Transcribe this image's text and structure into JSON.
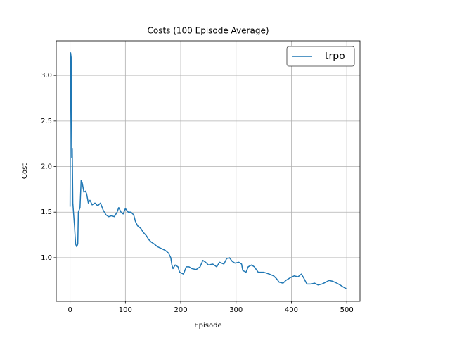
{
  "chart_data": {
    "type": "line",
    "title": "Costs (100 Episode Average)",
    "x_label": "Episode",
    "y_label": "Cost",
    "xlim": [
      -24.95,
      523.95
    ],
    "ylim": [
      0.52,
      3.38
    ],
    "xticks": [
      0,
      100,
      200,
      300,
      400,
      500
    ],
    "yticks": [
      {
        "value": 1,
        "label": "1.0"
      },
      {
        "value": 1.5,
        "label": "1.5"
      },
      {
        "value": 2,
        "label": "2.0"
      },
      {
        "value": 2.5,
        "label": "2.5"
      },
      {
        "value": 3,
        "label": "3.0"
      }
    ],
    "grid": true,
    "legend": "upper right",
    "x": [
      0,
      1,
      2,
      3,
      4,
      5,
      8,
      10,
      12,
      14,
      15,
      18,
      20,
      22,
      25,
      28,
      30,
      33,
      36,
      40,
      45,
      50,
      55,
      60,
      65,
      70,
      75,
      80,
      85,
      88,
      92,
      96,
      100,
      105,
      110,
      115,
      118,
      122,
      128,
      132,
      138,
      142,
      147,
      152,
      158,
      165,
      172,
      178,
      182,
      184,
      186,
      190,
      195,
      198,
      205,
      210,
      215,
      220,
      228,
      235,
      240,
      245,
      250,
      258,
      265,
      270,
      278,
      283,
      288,
      293,
      298,
      305,
      310,
      312,
      318,
      322,
      328,
      333,
      340,
      350,
      360,
      368,
      373,
      378,
      385,
      390,
      398,
      405,
      412,
      418,
      422,
      428,
      435,
      442,
      448,
      455,
      462,
      468,
      475,
      482,
      488,
      493,
      499
    ],
    "series": [
      {
        "name": "trpo",
        "color": "#1f77b4",
        "values": [
          1.56,
          3.25,
          3.2,
          2.1,
          2.2,
          1.6,
          1.35,
          1.15,
          1.12,
          1.15,
          1.5,
          1.55,
          1.85,
          1.82,
          1.72,
          1.73,
          1.7,
          1.6,
          1.63,
          1.58,
          1.6,
          1.57,
          1.6,
          1.52,
          1.47,
          1.45,
          1.46,
          1.45,
          1.5,
          1.55,
          1.5,
          1.48,
          1.54,
          1.5,
          1.5,
          1.47,
          1.4,
          1.35,
          1.32,
          1.28,
          1.24,
          1.2,
          1.17,
          1.15,
          1.12,
          1.1,
          1.08,
          1.05,
          1.0,
          0.92,
          0.88,
          0.92,
          0.9,
          0.84,
          0.82,
          0.9,
          0.9,
          0.88,
          0.87,
          0.9,
          0.97,
          0.95,
          0.92,
          0.93,
          0.9,
          0.95,
          0.93,
          0.99,
          1.0,
          0.96,
          0.94,
          0.95,
          0.93,
          0.86,
          0.84,
          0.9,
          0.92,
          0.9,
          0.84,
          0.84,
          0.82,
          0.8,
          0.77,
          0.73,
          0.72,
          0.75,
          0.78,
          0.8,
          0.79,
          0.82,
          0.78,
          0.71,
          0.71,
          0.72,
          0.7,
          0.71,
          0.73,
          0.75,
          0.74,
          0.72,
          0.7,
          0.68,
          0.66
        ]
      }
    ]
  }
}
